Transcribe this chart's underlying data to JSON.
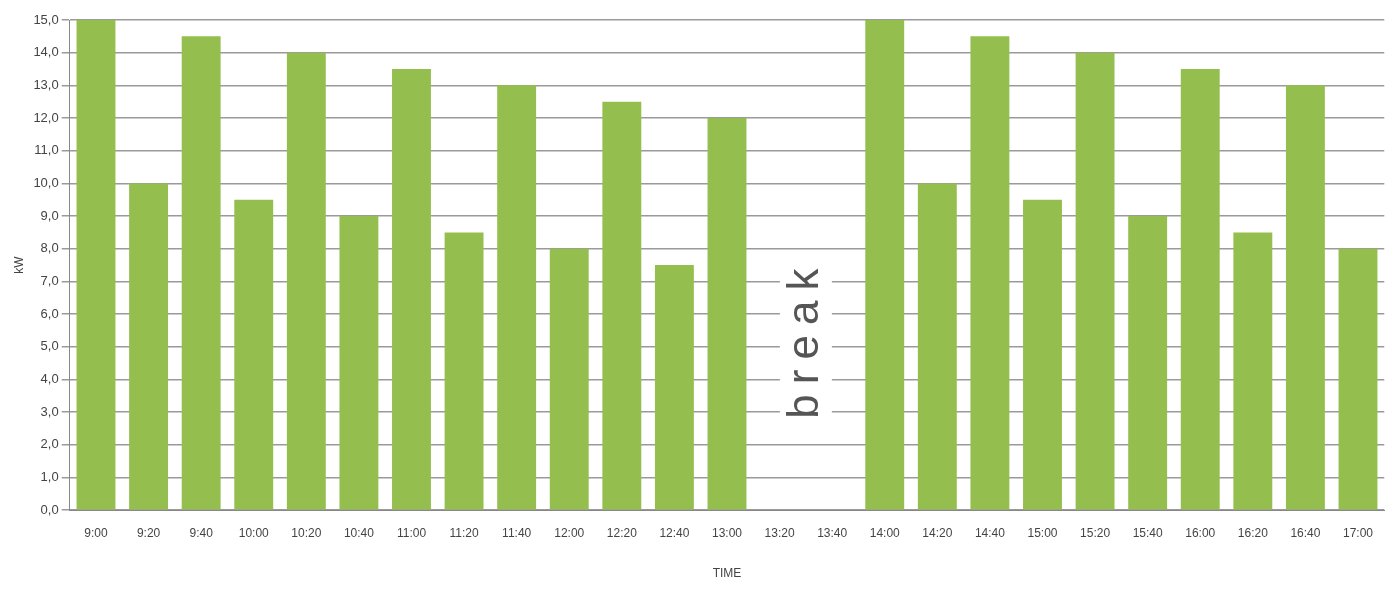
{
  "chart_data": {
    "type": "bar",
    "xlabel": "TIME",
    "ylabel": "kW",
    "categories": [
      "9:00",
      "9:20",
      "9:40",
      "10:00",
      "10:20",
      "10:40",
      "11:00",
      "11:20",
      "11:40",
      "12:00",
      "12:20",
      "12:40",
      "13:00",
      "13:20",
      "13:40",
      "14:00",
      "14:20",
      "14:40",
      "15:00",
      "15:20",
      "15:40",
      "16:00",
      "16:20",
      "16:40",
      "17:00"
    ],
    "series": [
      {
        "color": "#94bf4f",
        "values": [
          15,
          10,
          14.5,
          9.5,
          14,
          9,
          13.5,
          8.5,
          13,
          8,
          12.5,
          7.5,
          12,
          null,
          null,
          15,
          10,
          14.5,
          9.5,
          14,
          9,
          13.5,
          8.5,
          13,
          8
        ]
      }
    ],
    "ylim": [
      0,
      15
    ],
    "yticks": [
      {
        "value": 0,
        "label": "0,0"
      },
      {
        "value": 1,
        "label": "1,0"
      },
      {
        "value": 2,
        "label": "2,0"
      },
      {
        "value": 3,
        "label": "3,0"
      },
      {
        "value": 4,
        "label": "4,0"
      },
      {
        "value": 5,
        "label": "5,0"
      },
      {
        "value": 6,
        "label": "6,0"
      },
      {
        "value": 7,
        "label": "7,0"
      },
      {
        "value": 8,
        "label": "8,0"
      },
      {
        "value": 9,
        "label": "9,0"
      },
      {
        "value": 10,
        "label": "10,0"
      },
      {
        "value": 11,
        "label": "11,0"
      },
      {
        "value": 12,
        "label": "12,0"
      },
      {
        "value": 13,
        "label": "13,0"
      },
      {
        "value": 14,
        "label": "14,0"
      },
      {
        "value": 15,
        "label": "15,0"
      }
    ],
    "annotations": [
      "break"
    ],
    "grid": "y",
    "legend": false
  }
}
